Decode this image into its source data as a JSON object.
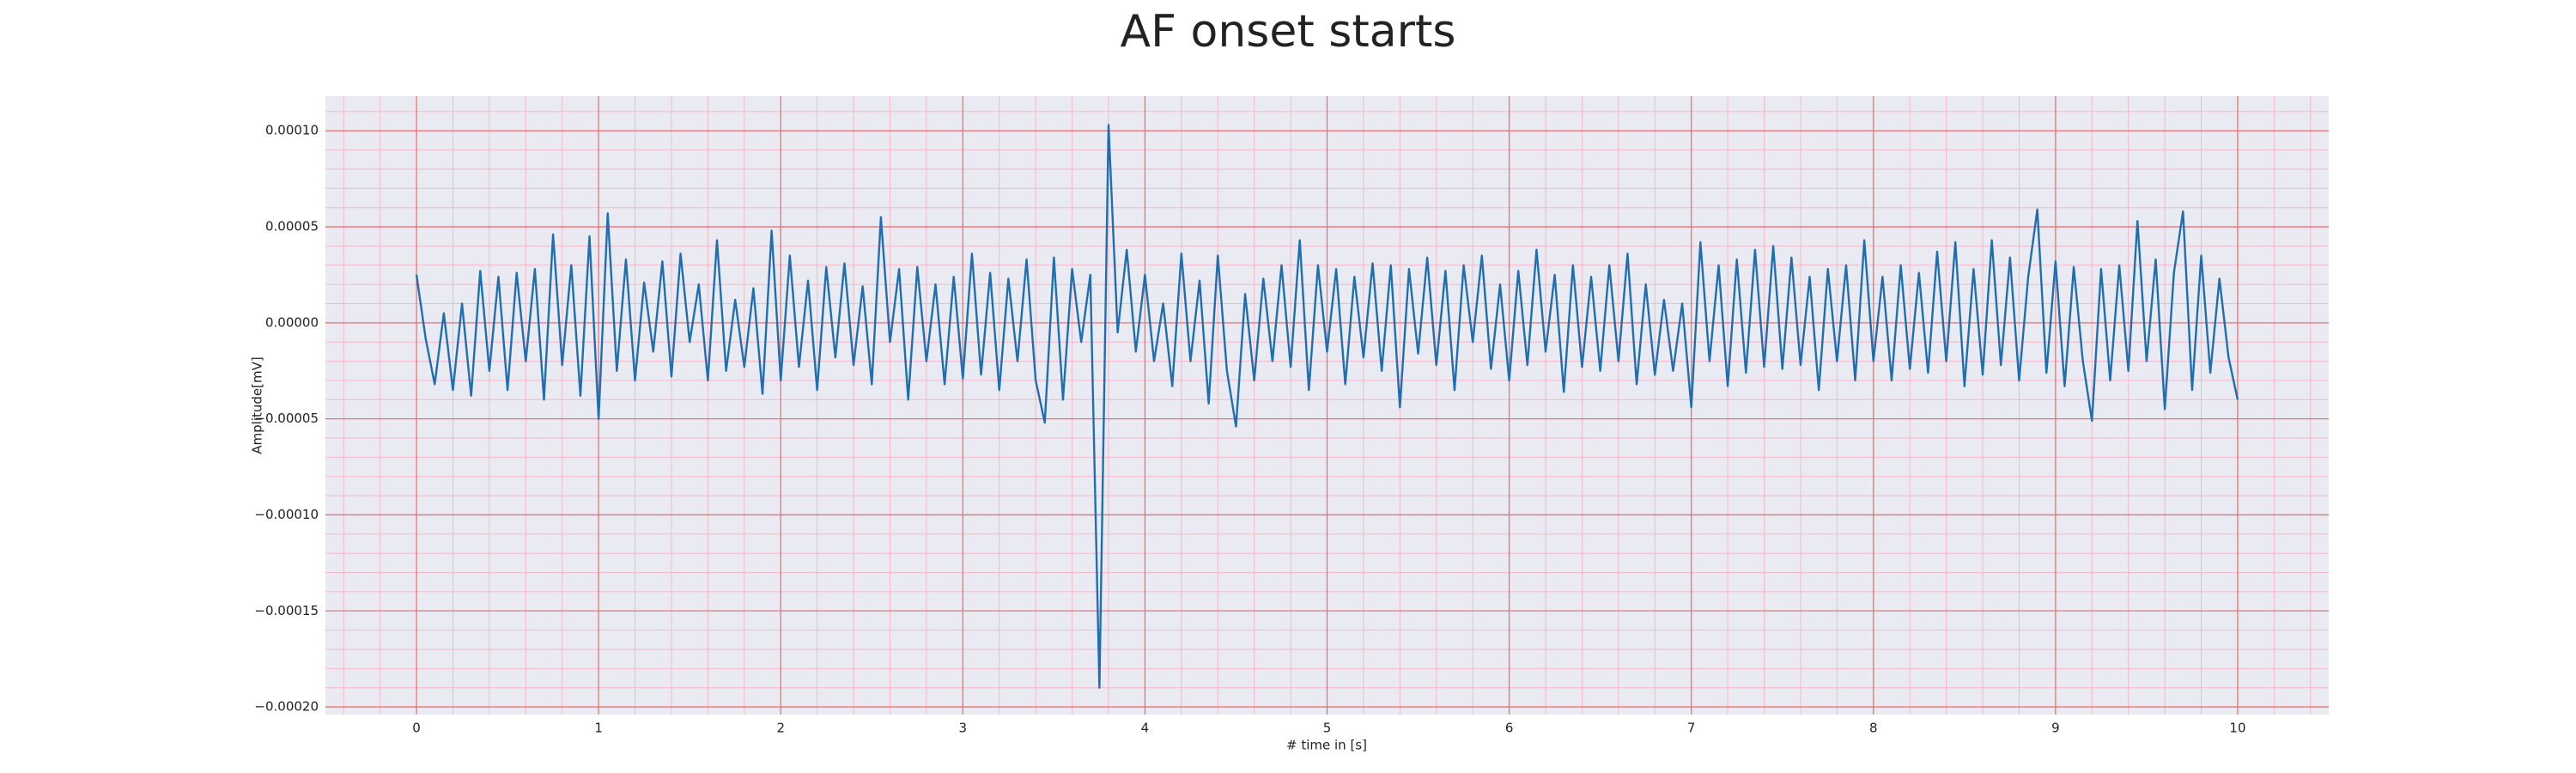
{
  "chart_data": {
    "type": "line",
    "title": "AF onset starts",
    "xlabel": "# time in [s]",
    "ylabel": "Amplitude[mV]",
    "xlim": [
      -0.5,
      10.5
    ],
    "ylim": [
      -0.000204,
      0.000118
    ],
    "xticks": [
      0,
      1,
      2,
      3,
      4,
      5,
      6,
      7,
      8,
      9,
      10
    ],
    "yticks": [
      {
        "value": -0.0002,
        "label": "−0.00020"
      },
      {
        "value": -0.00015,
        "label": "−0.00015"
      },
      {
        "value": -0.0001,
        "label": "−0.00010"
      },
      {
        "value": -5e-05,
        "label": "−0.00005"
      },
      {
        "value": 0,
        "label": "0.00000"
      },
      {
        "value": 5e-05,
        "label": "0.00005"
      },
      {
        "value": 0.0001,
        "label": "0.00010"
      }
    ],
    "grid": true,
    "grid_color": "#f07070",
    "minor_grid_color": "#f4b8c8",
    "minor_divisions": 5,
    "background": "#eaeaf2",
    "series": [
      {
        "color": "#1f6fb0",
        "x": [
          0,
          0.05,
          0.1,
          0.15,
          0.2,
          0.25,
          0.3,
          0.35,
          0.4,
          0.45,
          0.5,
          0.55,
          0.6,
          0.65,
          0.7,
          0.75,
          0.8,
          0.85,
          0.9,
          0.95,
          1,
          1.05,
          1.1,
          1.15,
          1.2,
          1.25,
          1.3,
          1.35,
          1.4,
          1.45,
          1.5,
          1.55,
          1.6,
          1.65,
          1.7,
          1.75,
          1.8,
          1.85,
          1.9,
          1.95,
          2,
          2.05,
          2.1,
          2.15,
          2.2,
          2.25,
          2.3,
          2.35,
          2.4,
          2.45,
          2.5,
          2.55,
          2.6,
          2.65,
          2.7,
          2.75,
          2.8,
          2.85,
          2.9,
          2.95,
          3,
          3.05,
          3.1,
          3.15,
          3.2,
          3.25,
          3.3,
          3.35,
          3.4,
          3.45,
          3.5,
          3.55,
          3.6,
          3.65,
          3.7,
          3.75,
          3.8,
          3.85,
          3.9,
          3.95,
          4,
          4.05,
          4.1,
          4.15,
          4.2,
          4.25,
          4.3,
          4.35,
          4.4,
          4.45,
          4.5,
          4.55,
          4.6,
          4.65,
          4.7,
          4.75,
          4.8,
          4.85,
          4.9,
          4.95,
          5,
          5.05,
          5.1,
          5.15,
          5.2,
          5.25,
          5.3,
          5.35,
          5.4,
          5.45,
          5.5,
          5.55,
          5.6,
          5.65,
          5.7,
          5.75,
          5.8,
          5.85,
          5.9,
          5.95,
          6,
          6.05,
          6.1,
          6.15,
          6.2,
          6.25,
          6.3,
          6.35,
          6.4,
          6.45,
          6.5,
          6.55,
          6.6,
          6.65,
          6.7,
          6.75,
          6.8,
          6.85,
          6.9,
          6.95,
          7,
          7.05,
          7.1,
          7.15,
          7.2,
          7.25,
          7.3,
          7.35,
          7.4,
          7.45,
          7.5,
          7.55,
          7.6,
          7.65,
          7.7,
          7.75,
          7.8,
          7.85,
          7.9,
          7.95,
          8,
          8.05,
          8.1,
          8.15,
          8.2,
          8.25,
          8.3,
          8.35,
          8.4,
          8.45,
          8.5,
          8.55,
          8.6,
          8.65,
          8.7,
          8.75,
          8.8,
          8.85,
          8.9,
          8.95,
          9,
          9.05,
          9.1,
          9.15,
          9.2,
          9.25,
          9.3,
          9.35,
          9.4,
          9.45,
          9.5,
          9.55,
          9.6,
          9.65,
          9.7,
          9.75,
          9.8,
          9.85,
          9.9,
          9.95,
          10
        ],
        "values": [
          2.5e-05,
          -8e-06,
          -3.2e-05,
          5e-06,
          -3.5e-05,
          1e-05,
          -3.8e-05,
          2.7e-05,
          -2.5e-05,
          2.4e-05,
          -3.5e-05,
          2.6e-05,
          -2e-05,
          2.8e-05,
          -4e-05,
          4.6e-05,
          -2.2e-05,
          3e-05,
          -3.8e-05,
          4.5e-05,
          -5e-05,
          5.7e-05,
          -2.5e-05,
          3.3e-05,
          -3e-05,
          2.1e-05,
          -1.5e-05,
          3.2e-05,
          -2.8e-05,
          3.6e-05,
          -1e-05,
          2e-05,
          -3e-05,
          4.3e-05,
          -2.5e-05,
          1.2e-05,
          -2.3e-05,
          1.8e-05,
          -3.7e-05,
          4.8e-05,
          -3e-05,
          3.5e-05,
          -2.3e-05,
          2.2e-05,
          -3.5e-05,
          2.9e-05,
          -1.8e-05,
          3.1e-05,
          -2.2e-05,
          1.9e-05,
          -3.2e-05,
          5.5e-05,
          -1e-05,
          2.8e-05,
          -4e-05,
          2.9e-05,
          -2e-05,
          2e-05,
          -3.2e-05,
          2.4e-05,
          -2.9e-05,
          3.6e-05,
          -2.7e-05,
          2.6e-05,
          -3.5e-05,
          2.3e-05,
          -2e-05,
          3.3e-05,
          -3e-05,
          -5.2e-05,
          3.4e-05,
          -4e-05,
          2.8e-05,
          -1e-05,
          2.5e-05,
          -0.00019,
          0.000103,
          -5e-06,
          3.8e-05,
          -1.5e-05,
          2.5e-05,
          -2e-05,
          1e-05,
          -3.3e-05,
          3.6e-05,
          -2e-05,
          2.2e-05,
          -4.2e-05,
          3.5e-05,
          -2.5e-05,
          -5.4e-05,
          1.5e-05,
          -3e-05,
          2.3e-05,
          -2e-05,
          3e-05,
          -2.3e-05,
          4.3e-05,
          -3.5e-05,
          3e-05,
          -1.5e-05,
          2.8e-05,
          -3.2e-05,
          2.4e-05,
          -1.8e-05,
          3.1e-05,
          -2.5e-05,
          3e-05,
          -4.4e-05,
          2.8e-05,
          -1.6e-05,
          3.4e-05,
          -2.2e-05,
          2.7e-05,
          -3.5e-05,
          3e-05,
          -1e-05,
          3.5e-05,
          -2.4e-05,
          2e-05,
          -3e-05,
          2.7e-05,
          -2.2e-05,
          3.8e-05,
          -1.5e-05,
          2.5e-05,
          -3.6e-05,
          3e-05,
          -2.3e-05,
          2.4e-05,
          -2.5e-05,
          3e-05,
          -2e-05,
          3.6e-05,
          -3.2e-05,
          2e-05,
          -2.7e-05,
          1.2e-05,
          -2.5e-05,
          1e-05,
          -4.4e-05,
          4.2e-05,
          -2e-05,
          3e-05,
          -3.3e-05,
          3.3e-05,
          -2.6e-05,
          3.8e-05,
          -2.3e-05,
          4e-05,
          -2.4e-05,
          3.4e-05,
          -2.2e-05,
          2.4e-05,
          -3.5e-05,
          2.8e-05,
          -2e-05,
          3e-05,
          -3e-05,
          4.3e-05,
          -2e-05,
          2.4e-05,
          -3e-05,
          3e-05,
          -2.4e-05,
          2.6e-05,
          -2.6e-05,
          3.7e-05,
          -2e-05,
          4.2e-05,
          -3.3e-05,
          2.8e-05,
          -2.7e-05,
          4.3e-05,
          -2.2e-05,
          3.4e-05,
          -3e-05,
          2.4e-05,
          5.9e-05,
          -2.6e-05,
          3.2e-05,
          -3.3e-05,
          2.9e-05,
          -2e-05,
          -5.1e-05,
          2.8e-05,
          -3e-05,
          3e-05,
          -2.5e-05,
          5.3e-05,
          -2e-05,
          3.3e-05,
          -4.5e-05,
          2.6e-05,
          5.8e-05,
          -3.5e-05,
          3.5e-05,
          -2.6e-05,
          2.3e-05,
          -1.8e-05,
          -4e-05
        ]
      }
    ]
  }
}
